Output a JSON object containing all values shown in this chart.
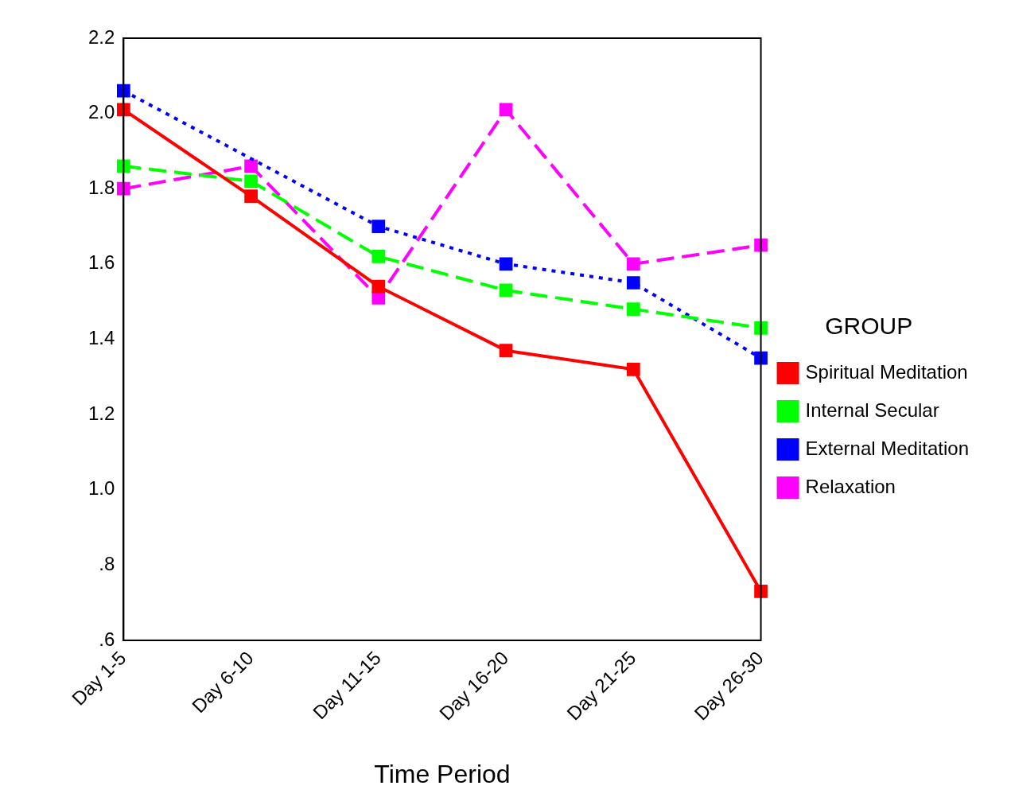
{
  "chart_data": {
    "type": "line",
    "xlabel": "Time Period",
    "legend_title": "GROUP",
    "legend": "right",
    "marker": "square",
    "grid": false,
    "categories": [
      "Day 1-5",
      "Day 6-10",
      "Day 11-15",
      "Day 16-20",
      "Day 21-25",
      "Day 26-30"
    ],
    "ylim": [
      0.6,
      2.2
    ],
    "yticks": [
      {
        "value": 0.6,
        "label": ".6"
      },
      {
        "value": 0.8,
        "label": ".8"
      },
      {
        "value": 1,
        "label": "1.0"
      },
      {
        "value": 1.2,
        "label": "1.2"
      },
      {
        "value": 1.4,
        "label": "1.4"
      },
      {
        "value": 1.6,
        "label": "1.6"
      },
      {
        "value": 1.8,
        "label": "1.8"
      },
      {
        "value": 2,
        "label": "2.0"
      },
      {
        "value": 2.2,
        "label": "2.2"
      }
    ],
    "series": [
      {
        "name": "Spiritual Meditation",
        "color": "#ff0000",
        "line_style": "solid",
        "values": [
          2.01,
          1.78,
          1.54,
          1.37,
          1.32,
          0.73
        ]
      },
      {
        "name": "Internal Secular",
        "color": "#00ff00",
        "line_style": "dashed",
        "values": [
          1.86,
          1.82,
          1.62,
          1.53,
          1.48,
          1.43
        ]
      },
      {
        "name": "External Meditation",
        "color": "#0000ff",
        "line_style": "dotted",
        "values": [
          2.06,
          null,
          1.7,
          1.6,
          1.55,
          1.35
        ]
      },
      {
        "name": "Relaxation",
        "color": "#ff00ff",
        "line_style": "dashed",
        "values": [
          1.8,
          1.86,
          1.51,
          2.01,
          1.6,
          1.65
        ]
      }
    ]
  }
}
